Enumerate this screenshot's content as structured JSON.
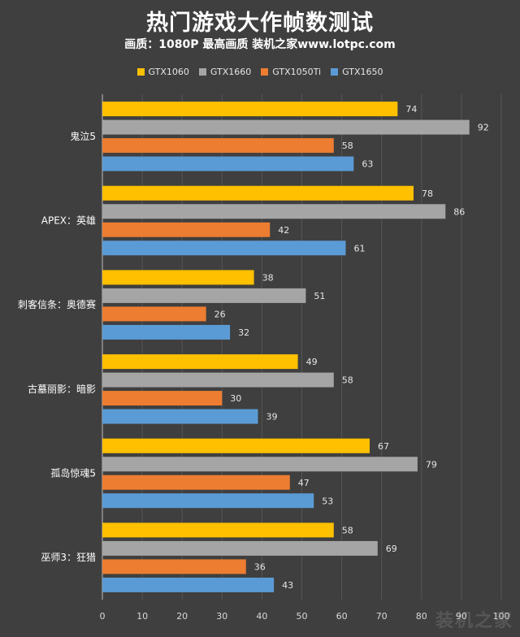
{
  "header": {
    "title": "热门游戏大作帧数测试",
    "subtitle": "画质：1080P 最高画质 装机之家www.lotpc.com"
  },
  "colors": {
    "background": "#3f3f3f",
    "gridline": "#555555",
    "axis": "#bfbfbf"
  },
  "chart_data": {
    "type": "bar",
    "orientation": "horizontal",
    "title": "热门游戏大作帧数测试",
    "subtitle": "画质：1080P 最高画质 装机之家www.lotpc.com",
    "categories": [
      "鬼泣5",
      "APEX：英雄",
      "刺客信条：奥德赛",
      "古墓丽影：暗影",
      "孤岛惊魂5",
      "巫师3：狂猎"
    ],
    "series": [
      {
        "name": "GTX1060",
        "color": "#ffc000",
        "values": [
          74,
          78,
          38,
          49,
          67,
          58
        ]
      },
      {
        "name": "GTX1660",
        "color": "#a5a5a5",
        "values": [
          92,
          86,
          51,
          58,
          79,
          69
        ]
      },
      {
        "name": "GTX1050Ti",
        "color": "#ed7d31",
        "values": [
          58,
          42,
          26,
          30,
          47,
          36
        ]
      },
      {
        "name": "GTX1650",
        "color": "#5b9bd5",
        "values": [
          63,
          61,
          32,
          39,
          53,
          43
        ]
      }
    ],
    "xlim": [
      0,
      100
    ],
    "xticks": [
      0,
      10,
      20,
      30,
      40,
      50,
      60,
      70,
      80,
      90,
      100
    ],
    "grid": true,
    "legend_position": "top-center",
    "xlabel": "",
    "ylabel": ""
  },
  "watermark": "装机之家"
}
